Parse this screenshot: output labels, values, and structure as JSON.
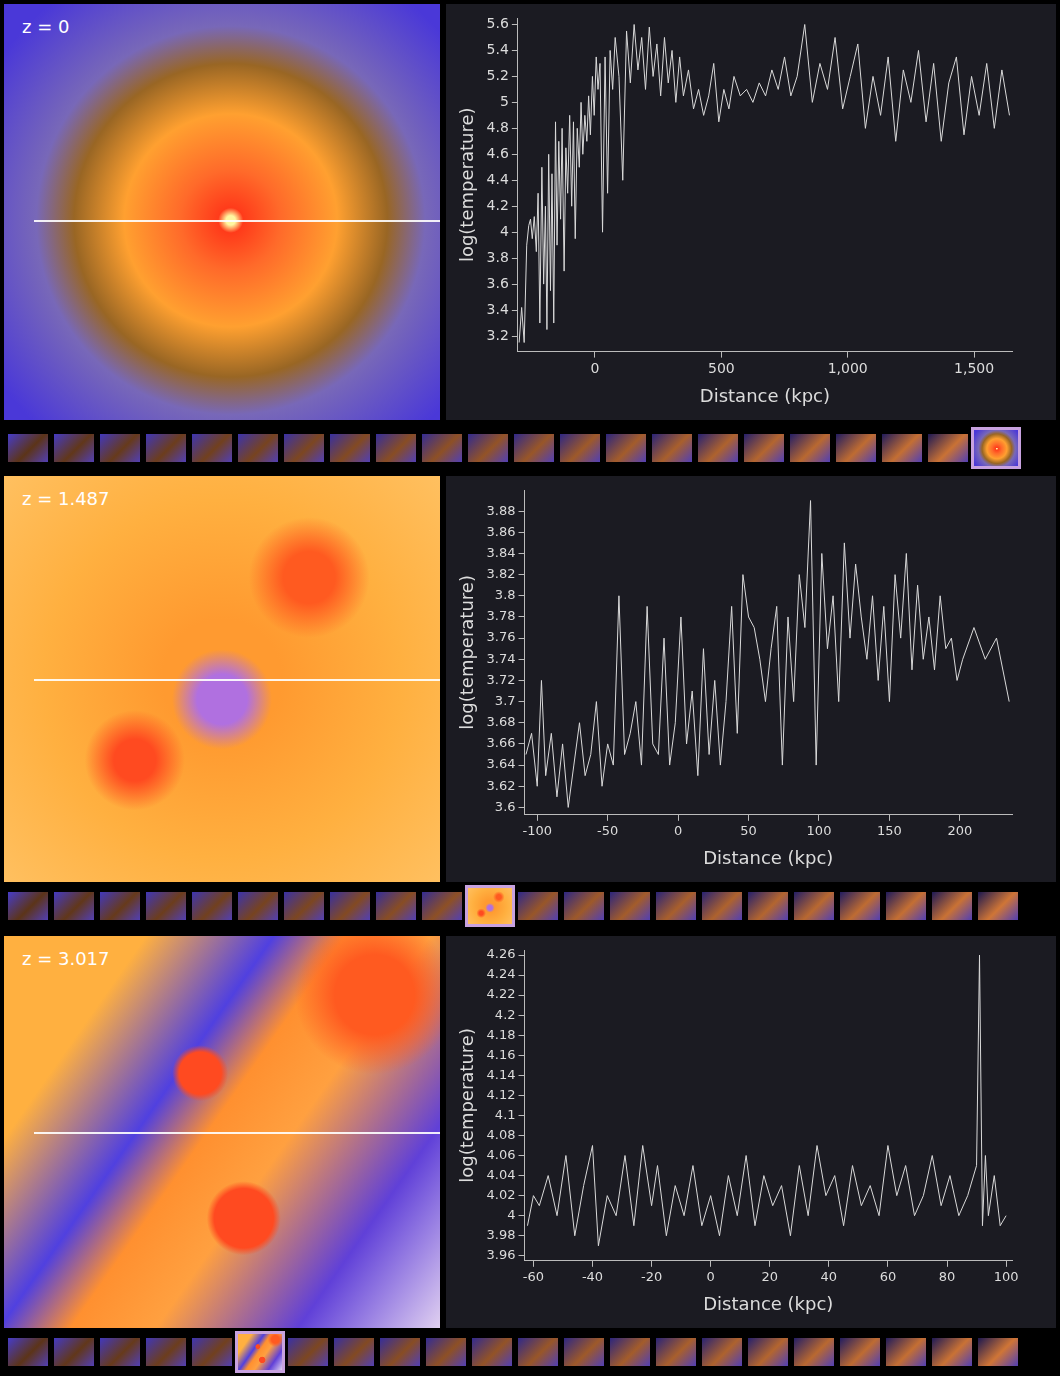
{
  "chart_data": [
    {
      "type": "line",
      "annotation": "z = 0",
      "x_label": "Distance (kpc)",
      "y_label": "log(temperature)",
      "color": "#d9d9d9",
      "grid": false,
      "xlim": [
        -305,
        1650
      ],
      "ylim": [
        3.08,
        5.65
      ],
      "xticks": [
        0,
        500,
        {
          "value": 1000,
          "label": "1,000"
        },
        {
          "value": 1500,
          "label": "1,500"
        }
      ],
      "yticks": [
        3.2,
        3.4,
        3.6,
        3.8,
        4,
        4.2,
        4.4,
        4.6,
        4.8,
        5,
        5.2,
        5.4,
        5.6
      ],
      "x": [
        -300,
        -290,
        -280,
        -270,
        -262,
        -255,
        -248,
        -240,
        -232,
        -225,
        -218,
        -210,
        -203,
        -196,
        -190,
        -183,
        -176,
        -170,
        -163,
        -156,
        -150,
        -143,
        -136,
        -130,
        -122,
        -115,
        -108,
        -100,
        -92,
        -85,
        -78,
        -70,
        -62,
        -55,
        -48,
        -40,
        -32,
        -25,
        -18,
        -10,
        -3,
        5,
        12,
        20,
        30,
        40,
        50,
        60,
        70,
        80,
        95,
        110,
        125,
        140,
        155,
        170,
        185,
        200,
        215,
        230,
        245,
        260,
        275,
        290,
        305,
        320,
        335,
        350,
        370,
        390,
        410,
        430,
        450,
        470,
        490,
        510,
        530,
        550,
        575,
        600,
        625,
        650,
        675,
        700,
        725,
        750,
        775,
        800,
        830,
        860,
        890,
        920,
        950,
        980,
        1010,
        1040,
        1070,
        1100,
        1130,
        1160,
        1190,
        1220,
        1250,
        1280,
        1310,
        1340,
        1370,
        1400,
        1430,
        1460,
        1490,
        1520,
        1550,
        1580,
        1610,
        1640
      ],
      "values": [
        3.15,
        3.42,
        3.15,
        3.9,
        4.05,
        4.1,
        3.95,
        4.12,
        3.85,
        4.3,
        3.3,
        4.5,
        3.6,
        4.2,
        3.25,
        4.6,
        3.55,
        4.45,
        3.3,
        4.85,
        3.9,
        4.7,
        4.1,
        4.8,
        3.7,
        4.65,
        4.3,
        4.9,
        4.2,
        4.85,
        3.95,
        4.8,
        4.5,
        5.0,
        4.6,
        4.9,
        4.7,
        5.05,
        4.75,
        5.2,
        4.9,
        5.35,
        5.1,
        5.3,
        4.0,
        5.35,
        4.3,
        5.4,
        5.1,
        5.5,
        5.2,
        4.4,
        5.55,
        5.15,
        5.6,
        5.25,
        5.5,
        5.1,
        5.58,
        5.2,
        5.45,
        5.05,
        5.5,
        5.15,
        5.4,
        5.0,
        5.35,
        5.05,
        5.25,
        4.95,
        5.1,
        4.9,
        5.05,
        5.3,
        4.85,
        5.1,
        4.95,
        5.2,
        5.05,
        5.1,
        5.0,
        5.15,
        5.05,
        5.25,
        5.1,
        5.35,
        5.05,
        5.2,
        5.6,
        5.0,
        5.3,
        5.1,
        5.5,
        4.95,
        5.2,
        5.45,
        4.8,
        5.2,
        4.9,
        5.35,
        4.7,
        5.25,
        5.0,
        5.4,
        4.85,
        5.3,
        4.7,
        5.15,
        5.35,
        4.75,
        5.2,
        4.9,
        5.3,
        4.8,
        5.25,
        4.9
      ]
    },
    {
      "type": "line",
      "annotation": "z = 1.487",
      "x_label": "Distance (kpc)",
      "y_label": "log(temperature)",
      "color": "#d9d9d9",
      "grid": false,
      "xlim": [
        -109,
        237
      ],
      "ylim": [
        3.593,
        3.9
      ],
      "xticks": [
        -100,
        -50,
        0,
        50,
        100,
        150,
        200
      ],
      "yticks": [
        3.6,
        3.62,
        3.64,
        3.66,
        3.68,
        3.7,
        3.72,
        3.74,
        3.76,
        3.78,
        3.8,
        3.82,
        3.84,
        3.86,
        3.88
      ],
      "x": [
        -108,
        -104,
        -100,
        -97,
        -94,
        -90,
        -86,
        -82,
        -78,
        -74,
        -70,
        -66,
        -62,
        -58,
        -54,
        -50,
        -46,
        -42,
        -38,
        -34,
        -30,
        -26,
        -22,
        -18,
        -14,
        -10,
        -6,
        -2,
        2,
        6,
        10,
        14,
        18,
        22,
        26,
        30,
        34,
        38,
        42,
        46,
        50,
        54,
        58,
        62,
        66,
        70,
        74,
        78,
        82,
        86,
        90,
        94,
        98,
        102,
        106,
        110,
        114,
        118,
        122,
        126,
        130,
        134,
        138,
        142,
        146,
        150,
        154,
        158,
        162,
        166,
        170,
        174,
        178,
        182,
        186,
        190,
        194,
        198,
        202,
        210,
        218,
        226,
        235
      ],
      "values": [
        3.65,
        3.67,
        3.62,
        3.72,
        3.63,
        3.67,
        3.61,
        3.66,
        3.6,
        3.64,
        3.68,
        3.63,
        3.65,
        3.7,
        3.62,
        3.66,
        3.64,
        3.8,
        3.65,
        3.67,
        3.7,
        3.64,
        3.79,
        3.66,
        3.65,
        3.76,
        3.64,
        3.68,
        3.78,
        3.66,
        3.71,
        3.63,
        3.75,
        3.65,
        3.72,
        3.64,
        3.7,
        3.79,
        3.67,
        3.82,
        3.78,
        3.77,
        3.74,
        3.7,
        3.75,
        3.79,
        3.64,
        3.78,
        3.7,
        3.82,
        3.77,
        3.89,
        3.64,
        3.84,
        3.75,
        3.8,
        3.7,
        3.85,
        3.76,
        3.83,
        3.78,
        3.74,
        3.8,
        3.72,
        3.79,
        3.7,
        3.82,
        3.76,
        3.84,
        3.73,
        3.81,
        3.74,
        3.78,
        3.73,
        3.8,
        3.75,
        3.76,
        3.72,
        3.74,
        3.77,
        3.74,
        3.76,
        3.7
      ]
    },
    {
      "type": "line",
      "annotation": "z = 3.017",
      "x_label": "Distance (kpc)",
      "y_label": "log(temperature)",
      "color": "#d9d9d9",
      "grid": false,
      "xlim": [
        -63,
        102
      ],
      "ylim": [
        3.955,
        4.265
      ],
      "xticks": [
        -60,
        -40,
        -20,
        0,
        20,
        40,
        60,
        80,
        100
      ],
      "yticks": [
        3.96,
        3.98,
        4,
        4.02,
        4.04,
        4.06,
        4.08,
        4.1,
        4.12,
        4.14,
        4.16,
        4.18,
        4.2,
        4.22,
        4.24,
        4.26
      ],
      "x": [
        -62,
        -60,
        -58,
        -55,
        -52,
        -49,
        -46,
        -43,
        -40,
        -38,
        -35,
        -32,
        -29,
        -26,
        -23,
        -20,
        -18,
        -15,
        -12,
        -9,
        -6,
        -3,
        0,
        3,
        6,
        9,
        12,
        15,
        18,
        21,
        24,
        27,
        30,
        33,
        36,
        39,
        42,
        45,
        48,
        51,
        54,
        57,
        60,
        63,
        66,
        69,
        72,
        75,
        78,
        81,
        84,
        87,
        90,
        91,
        92,
        93,
        94,
        96,
        98,
        100
      ],
      "values": [
        3.99,
        4.02,
        4.01,
        4.04,
        4.0,
        4.06,
        3.98,
        4.03,
        4.07,
        3.97,
        4.02,
        4.0,
        4.06,
        3.99,
        4.07,
        4.01,
        4.05,
        3.98,
        4.03,
        4.0,
        4.05,
        3.99,
        4.02,
        3.98,
        4.04,
        4.0,
        4.06,
        3.99,
        4.04,
        4.01,
        4.03,
        3.98,
        4.05,
        4.0,
        4.07,
        4.02,
        4.04,
        3.99,
        4.05,
        4.01,
        4.03,
        4.0,
        4.07,
        4.02,
        4.05,
        4.0,
        4.02,
        4.06,
        4.01,
        4.04,
        4.0,
        4.02,
        4.05,
        4.26,
        3.99,
        4.06,
        4.0,
        4.04,
        3.99,
        4.0
      ]
    }
  ]
}
